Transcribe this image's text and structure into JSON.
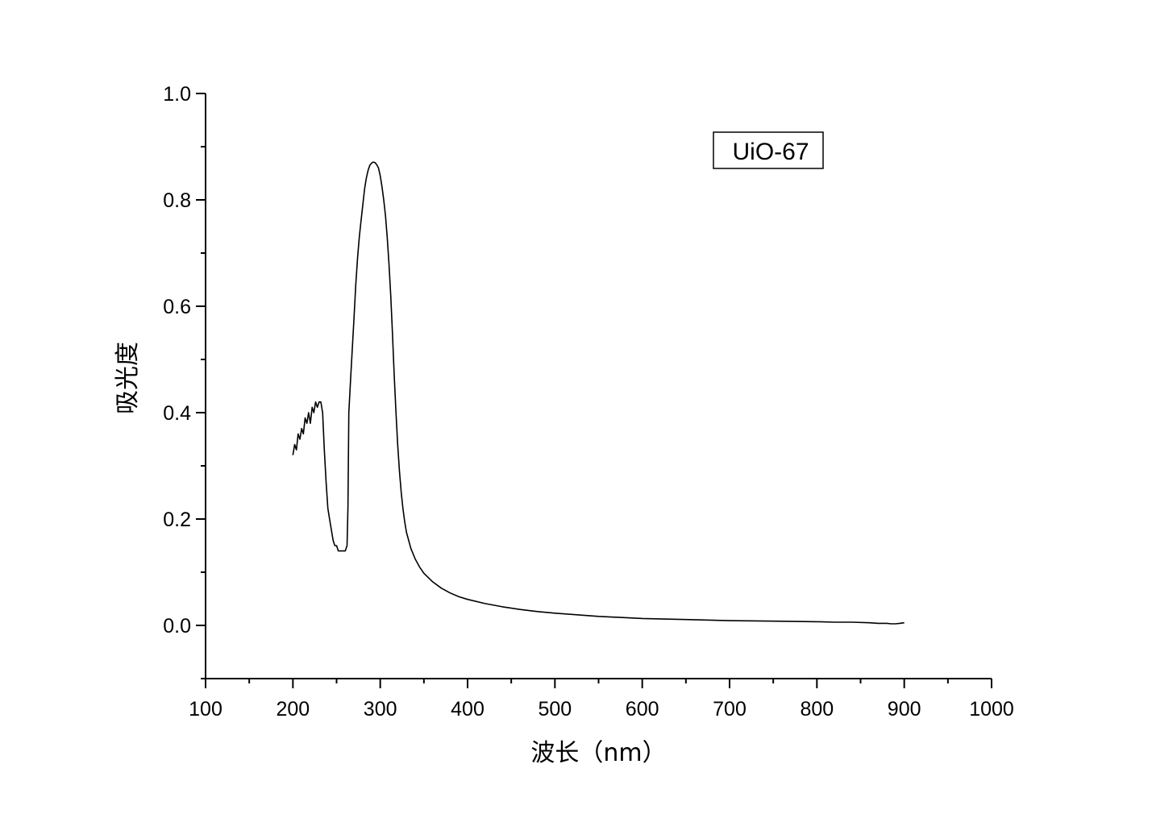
{
  "chart_data": {
    "type": "line",
    "title": "",
    "xlabel": "波长（nm）",
    "ylabel": "吸光度",
    "xlim": [
      100,
      1000
    ],
    "ylim": [
      -0.1,
      1.0
    ],
    "x_ticks": [
      100,
      200,
      300,
      400,
      500,
      600,
      700,
      800,
      900,
      1000
    ],
    "x_tick_labels": [
      "100",
      "200",
      "300",
      "400",
      "500",
      "600",
      "700",
      "800",
      "900",
      "1000"
    ],
    "y_ticks": [
      0.0,
      0.2,
      0.4,
      0.6,
      0.8,
      1.0
    ],
    "y_tick_labels": [
      "0.0",
      "0.2",
      "0.4",
      "0.6",
      "0.8",
      "1.0"
    ],
    "grid": false,
    "legend_position": "top-right",
    "series": [
      {
        "name": "UiO-67",
        "color": "#000000",
        "x": [
          200,
          202,
          204,
          206,
          208,
          210,
          212,
          214,
          216,
          218,
          220,
          222,
          224,
          226,
          228,
          230,
          232,
          234,
          236,
          238,
          240,
          242,
          244,
          246,
          248,
          250,
          252,
          254,
          256,
          258,
          260,
          262,
          263,
          264,
          266,
          268,
          270,
          272,
          274,
          276,
          278,
          280,
          282,
          284,
          286,
          288,
          290,
          292,
          294,
          296,
          298,
          300,
          302,
          304,
          306,
          308,
          310,
          312,
          314,
          316,
          318,
          320,
          322,
          324,
          326,
          328,
          330,
          335,
          340,
          345,
          350,
          360,
          370,
          380,
          390,
          400,
          420,
          440,
          460,
          480,
          500,
          550,
          600,
          650,
          700,
          750,
          800,
          820,
          840,
          860,
          870,
          880,
          885,
          890,
          895,
          900
        ],
        "y": [
          0.32,
          0.34,
          0.33,
          0.36,
          0.35,
          0.37,
          0.36,
          0.39,
          0.38,
          0.4,
          0.38,
          0.41,
          0.4,
          0.42,
          0.41,
          0.42,
          0.42,
          0.4,
          0.33,
          0.27,
          0.22,
          0.2,
          0.18,
          0.16,
          0.15,
          0.15,
          0.14,
          0.14,
          0.14,
          0.14,
          0.14,
          0.15,
          0.22,
          0.4,
          0.46,
          0.52,
          0.58,
          0.64,
          0.69,
          0.73,
          0.76,
          0.79,
          0.82,
          0.84,
          0.855,
          0.865,
          0.869,
          0.871,
          0.87,
          0.866,
          0.86,
          0.845,
          0.825,
          0.8,
          0.77,
          0.73,
          0.68,
          0.62,
          0.55,
          0.47,
          0.4,
          0.34,
          0.29,
          0.25,
          0.22,
          0.195,
          0.175,
          0.145,
          0.125,
          0.11,
          0.098,
          0.082,
          0.07,
          0.061,
          0.054,
          0.049,
          0.041,
          0.035,
          0.03,
          0.026,
          0.023,
          0.017,
          0.013,
          0.011,
          0.009,
          0.008,
          0.007,
          0.006,
          0.006,
          0.005,
          0.004,
          0.004,
          0.003,
          0.003,
          0.004,
          0.005
        ]
      }
    ]
  }
}
